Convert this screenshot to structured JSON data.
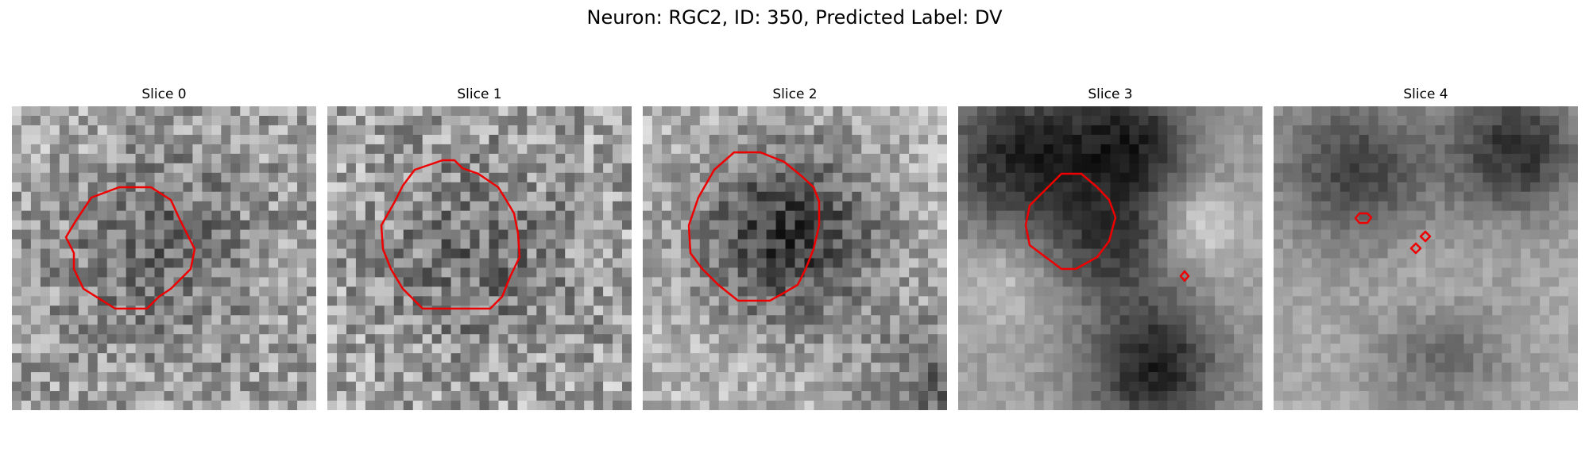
{
  "figure": {
    "title": "Neuron: RGC2, ID: 350, Predicted Label: DV"
  },
  "panels": [
    {
      "title": "Slice 0"
    },
    {
      "title": "Slice 1"
    },
    {
      "title": "Slice 2"
    },
    {
      "title": "Slice 3"
    },
    {
      "title": "Slice 4"
    }
  ],
  "colors": {
    "contour": "#ee0000",
    "background": "#ffffff"
  }
}
